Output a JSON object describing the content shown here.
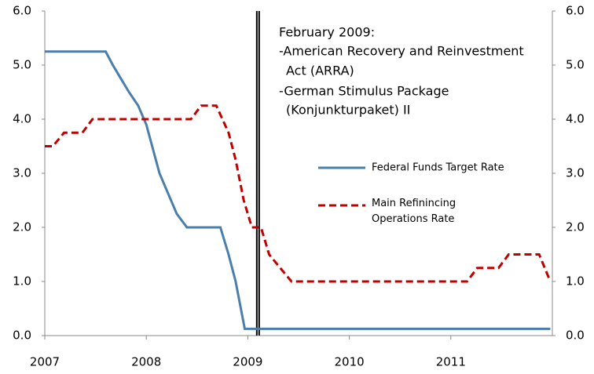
{
  "chart_data": {
    "type": "line",
    "annotation": [
      "February 2009:",
      "-American Recovery and Reinvestment",
      "Act (ARRA)",
      "-German Stimulus Package",
      "(Konjunkturpaket) II"
    ],
    "event_x": 2009.1,
    "xlim": [
      2007,
      2012
    ],
    "xticks": [
      2007,
      2008,
      2009,
      2010,
      2011
    ],
    "ylim": [
      0,
      6
    ],
    "yticks": [
      {
        "value": 0,
        "label": "0.0"
      },
      {
        "value": 1,
        "label": "1.0"
      },
      {
        "value": 2,
        "label": "2.0"
      },
      {
        "value": 3,
        "label": "3.0"
      },
      {
        "value": 4,
        "label": "4.0"
      },
      {
        "value": 5,
        "label": "5.0"
      },
      {
        "value": 6,
        "label": "6.0"
      }
    ],
    "y2lim": [
      0,
      6
    ],
    "y2ticks": [
      {
        "value": 0,
        "label": "0.0"
      },
      {
        "value": 1,
        "label": "1.0"
      },
      {
        "value": 2,
        "label": "2.0"
      },
      {
        "value": 3,
        "label": "3.0"
      },
      {
        "value": 4,
        "label": "4.0"
      },
      {
        "value": 5,
        "label": "5.0"
      },
      {
        "value": 6,
        "label": "6.0"
      }
    ],
    "series": [
      {
        "name": "Federal Funds Target Rate",
        "color": "#4a7eab",
        "dash": false,
        "x": [
          2007.0,
          2007.6,
          2007.67,
          2007.75,
          2007.83,
          2007.92,
          2008.0,
          2008.13,
          2008.3,
          2008.4,
          2008.73,
          2008.81,
          2008.88,
          2008.97,
          2011.98
        ],
        "values": [
          5.25,
          5.25,
          5.0,
          4.75,
          4.5,
          4.25,
          3.9,
          3.0,
          2.25,
          2.0,
          2.0,
          1.5,
          1.0,
          0.125,
          0.125
        ]
      },
      {
        "name": "Main Refinincing Operations Rate",
        "color": "#c00000",
        "dash": true,
        "x": [
          2007.0,
          2007.08,
          2007.19,
          2007.37,
          2007.47,
          2008.44,
          2008.54,
          2008.69,
          2008.81,
          2008.88,
          2008.96,
          2009.04,
          2009.13,
          2009.21,
          2009.32,
          2009.43,
          2011.16,
          2011.26,
          2011.47,
          2011.57,
          2011.87,
          2011.98
        ],
        "values": [
          3.5,
          3.5,
          3.75,
          3.75,
          4.0,
          4.0,
          4.25,
          4.25,
          3.75,
          3.25,
          2.5,
          2.0,
          2.0,
          1.5,
          1.25,
          1.0,
          1.0,
          1.25,
          1.25,
          1.5,
          1.5,
          1.0
        ]
      }
    ]
  }
}
